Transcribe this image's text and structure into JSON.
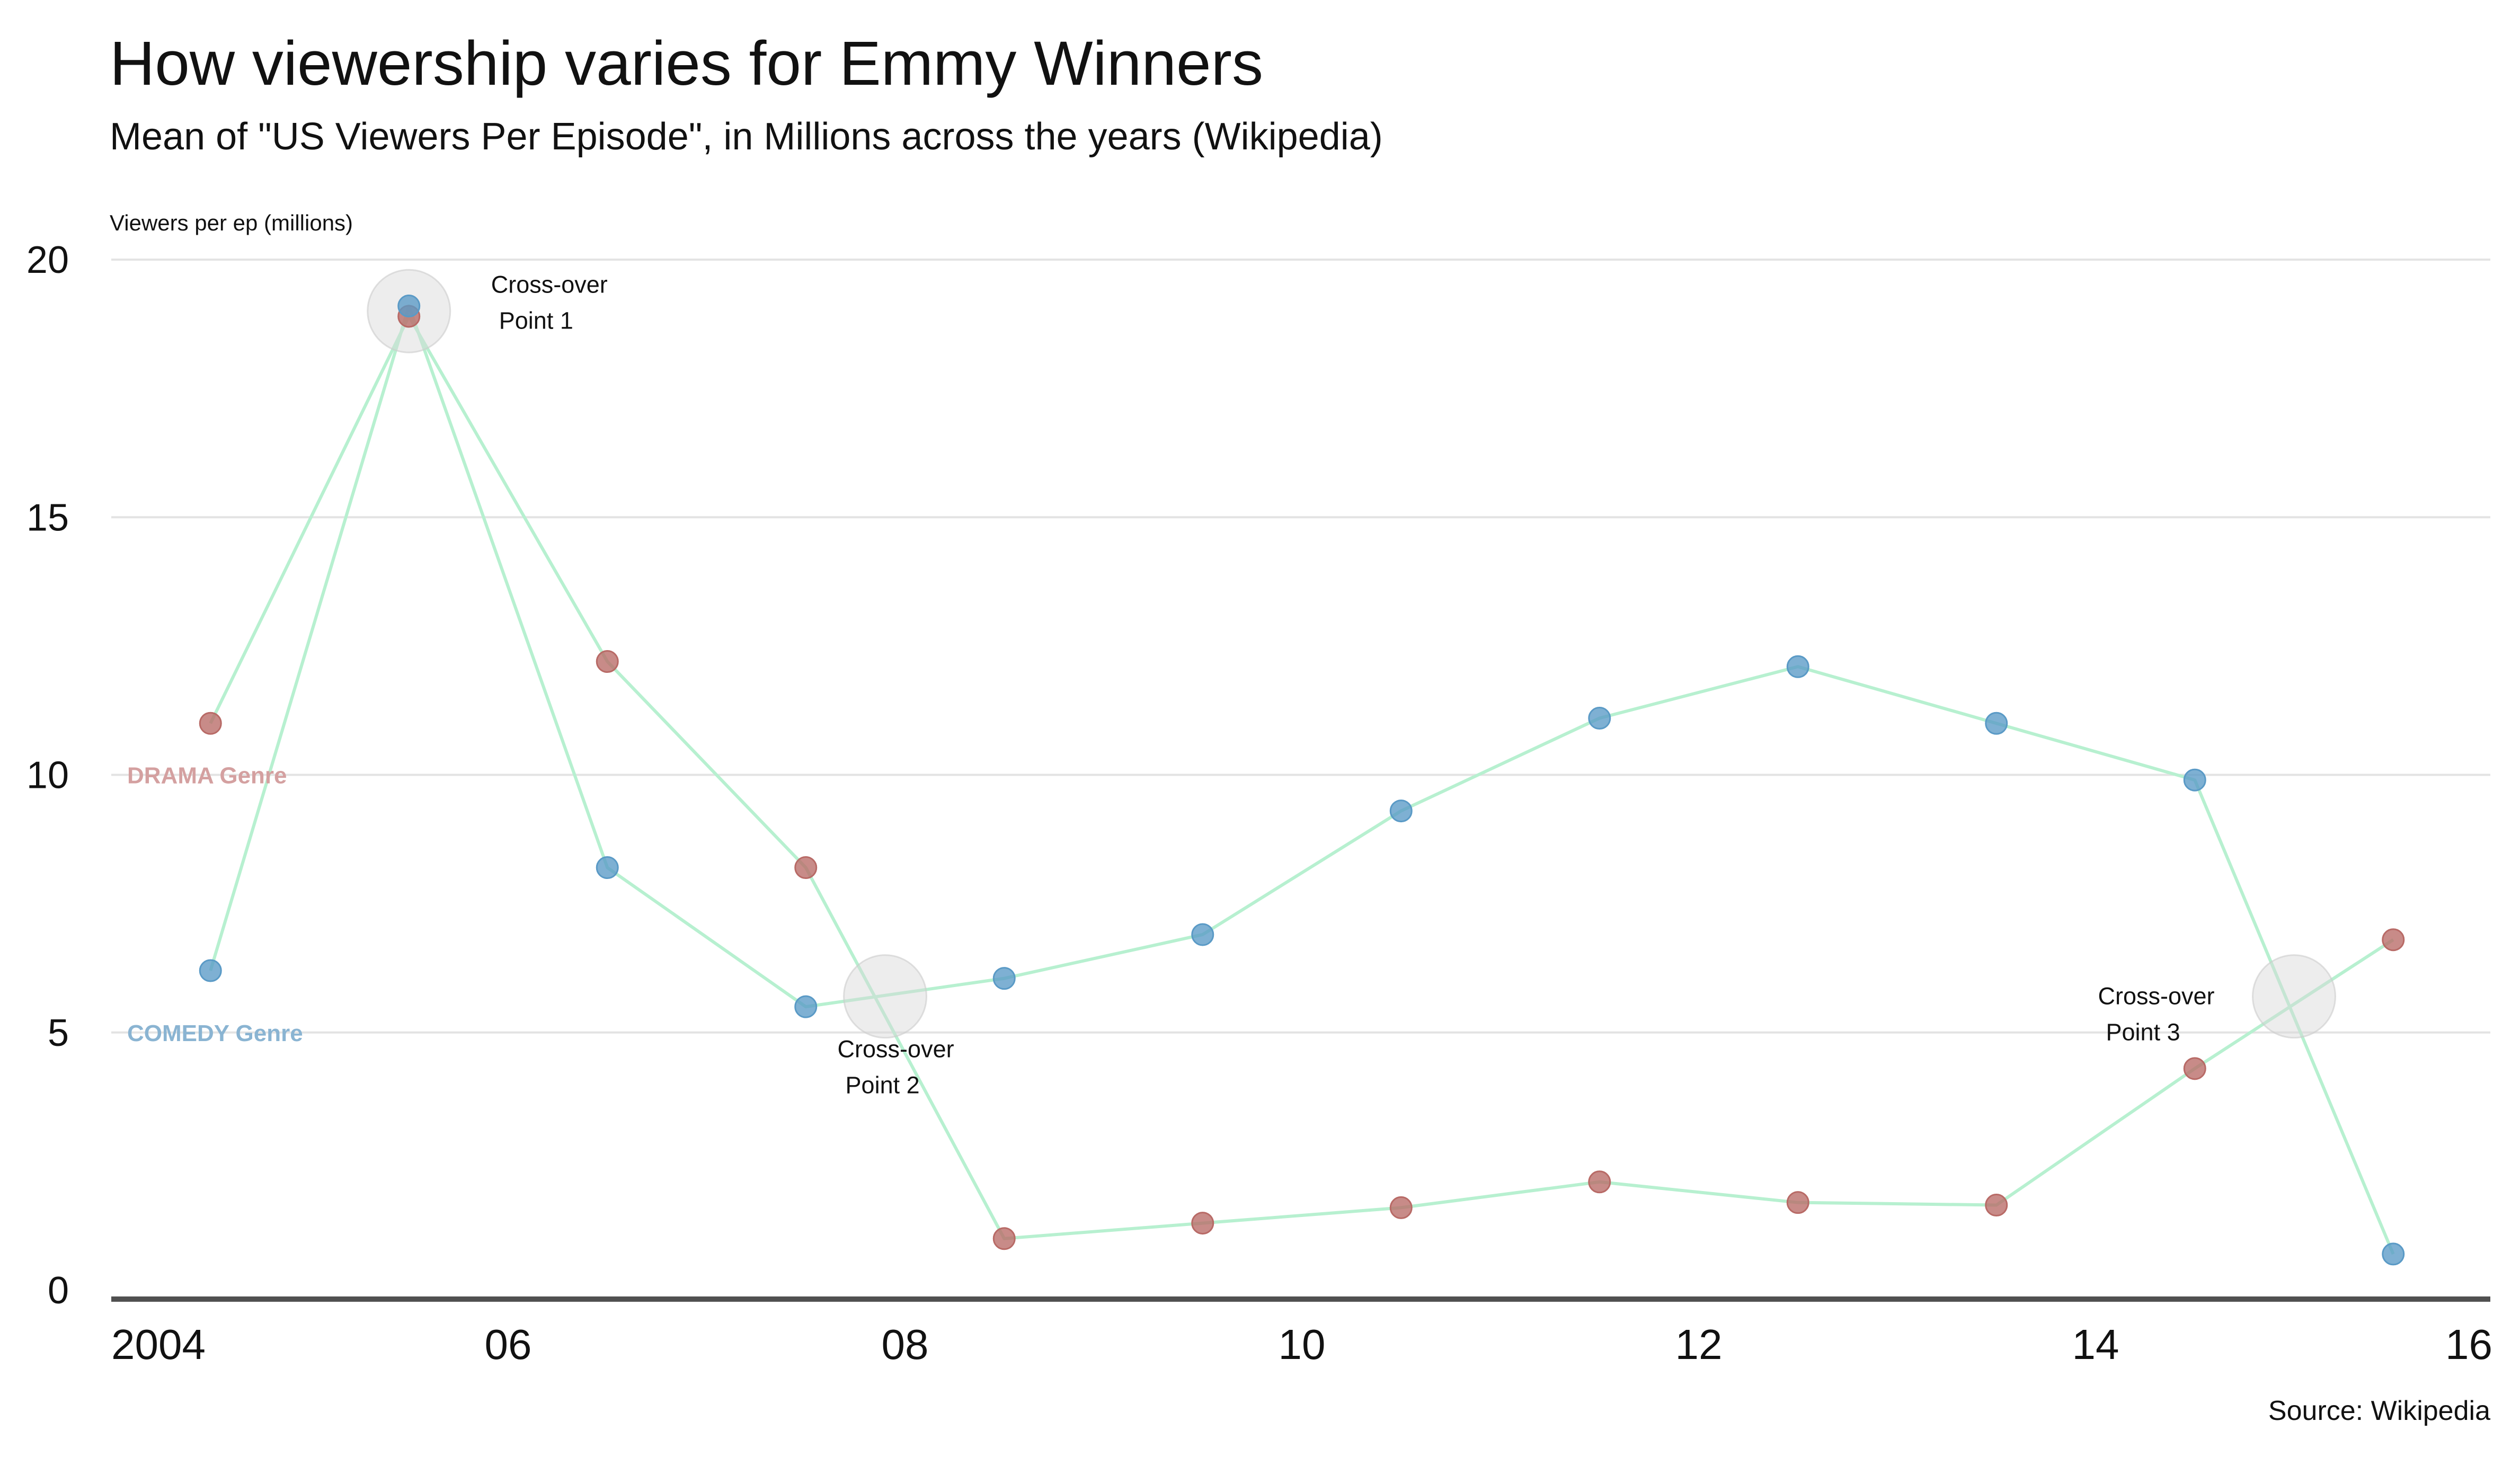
{
  "chart_data": {
    "type": "line",
    "title": "How viewership varies for Emmy Winners",
    "subtitle": "Mean of \"US Viewers Per Episode\", in Millions across the years (Wikipedia)",
    "ylabel": "Viewers per ep (millions)",
    "xlabel": "",
    "source": "Source: Wikipedia",
    "xlim": [
      2004,
      2016
    ],
    "ylim": [
      0,
      20
    ],
    "grid": true,
    "x_ticks": [
      {
        "value": 2004,
        "label": "2004"
      },
      {
        "value": 2006,
        "label": "06"
      },
      {
        "value": 2008,
        "label": "08"
      },
      {
        "value": 2010,
        "label": "10"
      },
      {
        "value": 2012,
        "label": "12"
      },
      {
        "value": 2014,
        "label": "14"
      },
      {
        "value": 2016,
        "label": "16"
      }
    ],
    "y_ticks": [
      0,
      5,
      10,
      15,
      20
    ],
    "line_color": "#b7f0d0",
    "series": [
      {
        "name": "DRAMA Genre",
        "color": "#b86a66",
        "label_color": "#d4a0a0",
        "label_value": 10,
        "points": [
          {
            "x": 2004.5,
            "y": 11.0
          },
          {
            "x": 2005.5,
            "y": 18.9
          },
          {
            "x": 2006.5,
            "y": 12.2
          },
          {
            "x": 2007.5,
            "y": 8.2
          },
          {
            "x": 2008.5,
            "y": 1.0
          },
          {
            "x": 2009.5,
            "y": 1.3
          },
          {
            "x": 2010.5,
            "y": 1.6
          },
          {
            "x": 2011.5,
            "y": 2.1
          },
          {
            "x": 2012.5,
            "y": 1.7
          },
          {
            "x": 2013.5,
            "y": 1.65
          },
          {
            "x": 2014.5,
            "y": 4.3
          },
          {
            "x": 2015.5,
            "y": 6.8
          }
        ]
      },
      {
        "name": "COMEDY Genre",
        "color": "#5a9ac6",
        "label_color": "#8ab4d2",
        "label_value": 5,
        "points": [
          {
            "x": 2004.5,
            "y": 6.2
          },
          {
            "x": 2005.5,
            "y": 19.1
          },
          {
            "x": 2006.5,
            "y": 8.2
          },
          {
            "x": 2007.5,
            "y": 5.5
          },
          {
            "x": 2008.5,
            "y": 6.05
          },
          {
            "x": 2009.5,
            "y": 6.9
          },
          {
            "x": 2010.5,
            "y": 9.3
          },
          {
            "x": 2011.5,
            "y": 11.1
          },
          {
            "x": 2012.5,
            "y": 12.1
          },
          {
            "x": 2013.5,
            "y": 11.0
          },
          {
            "x": 2014.5,
            "y": 9.9
          },
          {
            "x": 2015.5,
            "y": 0.7
          }
        ]
      }
    ],
    "annotations": [
      {
        "x": 2005.5,
        "y": 19.0,
        "lines": [
          "Cross-over",
          "Point 1"
        ],
        "placement": "right"
      },
      {
        "x": 2007.9,
        "y": 5.7,
        "lines": [
          "Cross-over",
          "Point 2"
        ],
        "placement": "below"
      },
      {
        "x": 2015.0,
        "y": 5.7,
        "lines": [
          "Cross-over",
          "Point 3"
        ],
        "placement": "left"
      }
    ]
  }
}
